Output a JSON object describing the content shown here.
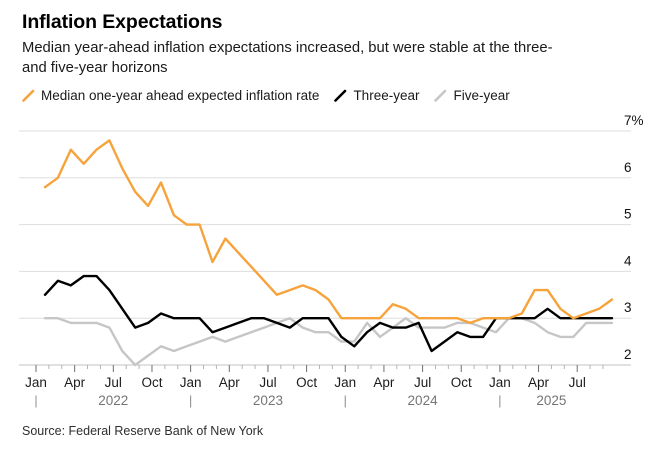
{
  "header": {
    "title": "Inflation Expectations",
    "subtitle_lines": [
      "Median year-ahead inflation expectations increased, but were stable at the three-",
      "and five-year horizons"
    ]
  },
  "legend": {
    "items": [
      {
        "key": "one-year",
        "label": "Median one-year ahead expected inflation rate",
        "color": "#F7A33C"
      },
      {
        "key": "three-year",
        "label": "Three-year",
        "color": "#000000"
      },
      {
        "key": "five-year",
        "label": "Five-year",
        "color": "#C6C6C6"
      }
    ]
  },
  "footer": {
    "source": "Source: Federal Reserve Bank of New York"
  },
  "chart_data": {
    "type": "line",
    "title": "Inflation Expectations",
    "x_frequency": "monthly",
    "x_start": "2022-01",
    "x_end": "2025-09",
    "ylim": [
      2,
      7
    ],
    "grid": "horizontal",
    "legend_position": "top",
    "colors": {
      "gridline": "#dedede",
      "axis_line": "#c3c3c3",
      "tick_minor": "#b3b3b3",
      "tick_major": "#6e6e6e",
      "month_label": "#1c1c1c",
      "year_label": "#757575",
      "y_label": "#111111"
    },
    "y_ticks": [
      {
        "value": 7,
        "label": "7%"
      },
      {
        "value": 6,
        "label": "6"
      },
      {
        "value": 5,
        "label": "5"
      },
      {
        "value": 4,
        "label": "4"
      },
      {
        "value": 3,
        "label": "3"
      },
      {
        "value": 2,
        "label": "2"
      }
    ],
    "x_major_ticks": [
      {
        "month_index": 0,
        "label": "Jan"
      },
      {
        "month_index": 3,
        "label": "Apr"
      },
      {
        "month_index": 6,
        "label": "Jul"
      },
      {
        "month_index": 9,
        "label": "Oct"
      },
      {
        "month_index": 12,
        "label": "Jan"
      },
      {
        "month_index": 15,
        "label": "Apr"
      },
      {
        "month_index": 18,
        "label": "Jul"
      },
      {
        "month_index": 21,
        "label": "Oct"
      },
      {
        "month_index": 24,
        "label": "Jan"
      },
      {
        "month_index": 27,
        "label": "Apr"
      },
      {
        "month_index": 30,
        "label": "Jul"
      },
      {
        "month_index": 33,
        "label": "Oct"
      },
      {
        "month_index": 36,
        "label": "Jan"
      },
      {
        "month_index": 39,
        "label": "Apr"
      },
      {
        "month_index": 42,
        "label": "Jul"
      }
    ],
    "year_labels": [
      {
        "label": "2022",
        "start_index": 0,
        "center_index": 6
      },
      {
        "label": "2023",
        "start_index": 12,
        "center_index": 18
      },
      {
        "label": "2024",
        "start_index": 24,
        "center_index": 30
      },
      {
        "label": "2025",
        "start_index": 36,
        "center_index": 40
      }
    ],
    "series": [
      {
        "key": "one-year",
        "name": "Median one-year ahead expected inflation rate",
        "color": "#F7A33C",
        "values": [
          5.8,
          6.0,
          6.6,
          6.3,
          6.6,
          6.8,
          6.2,
          5.7,
          5.4,
          5.9,
          5.2,
          5.0,
          5.0,
          4.2,
          4.7,
          4.4,
          4.1,
          3.8,
          3.5,
          3.6,
          3.7,
          3.6,
          3.4,
          3.0,
          3.0,
          3.0,
          3.0,
          3.3,
          3.2,
          3.0,
          3.0,
          3.0,
          3.0,
          2.9,
          3.0,
          3.0,
          3.0,
          3.1,
          3.6,
          3.6,
          3.2,
          3.0,
          3.1,
          3.2,
          3.4
        ]
      },
      {
        "key": "three-year",
        "name": "Three-year",
        "color": "#000000",
        "values": [
          3.5,
          3.8,
          3.7,
          3.9,
          3.9,
          3.6,
          3.2,
          2.8,
          2.9,
          3.1,
          3.0,
          3.0,
          3.0,
          2.7,
          2.8,
          2.9,
          3.0,
          3.0,
          2.9,
          2.8,
          3.0,
          3.0,
          3.0,
          2.6,
          2.4,
          2.7,
          2.9,
          2.8,
          2.8,
          2.9,
          2.3,
          2.5,
          2.7,
          2.6,
          2.6,
          3.0,
          3.0,
          3.0,
          3.0,
          3.2,
          3.0,
          3.0,
          3.0,
          3.0,
          3.0
        ]
      },
      {
        "key": "five-year",
        "name": "Five-year",
        "color": "#C6C6C6",
        "values": [
          3.0,
          3.0,
          2.9,
          2.9,
          2.9,
          2.8,
          2.3,
          2.0,
          2.2,
          2.4,
          2.3,
          2.4,
          2.5,
          2.6,
          2.5,
          2.6,
          2.7,
          2.8,
          2.9,
          3.0,
          2.8,
          2.7,
          2.7,
          2.5,
          2.5,
          2.9,
          2.6,
          2.8,
          3.0,
          2.8,
          2.8,
          2.8,
          2.9,
          2.9,
          2.8,
          2.7,
          3.0,
          3.0,
          2.9,
          2.7,
          2.6,
          2.6,
          2.9,
          2.9,
          2.9
        ]
      }
    ]
  }
}
